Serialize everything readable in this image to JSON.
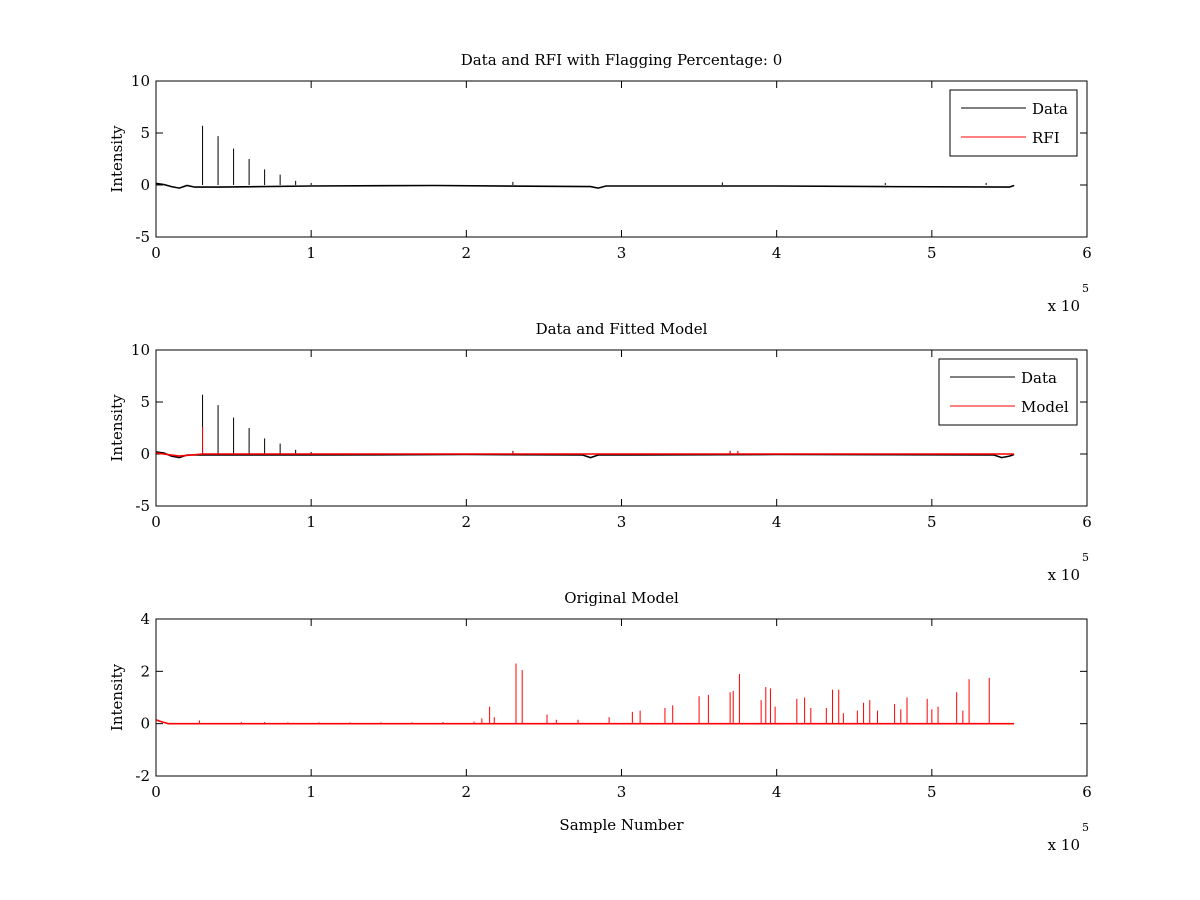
{
  "chart_data": [
    {
      "type": "line",
      "title": "Data and RFI with Flagging Percentage: 0",
      "xlabel": "",
      "ylabel": "Intensity",
      "xlim": [
        0,
        600000
      ],
      "ylim": [
        -5,
        10
      ],
      "xticks": [
        0,
        1,
        2,
        3,
        4,
        5,
        6
      ],
      "yticks": [
        -5,
        0,
        5,
        10
      ],
      "x_multiplier": {
        "base": "x 10",
        "exponent": "5"
      },
      "legend": {
        "position": "top-right",
        "entries": [
          {
            "label": "Data",
            "color": "#000000"
          },
          {
            "label": "RFI",
            "color": "#ff0000"
          }
        ]
      },
      "series": [
        {
          "name": "Data",
          "color": "#000000",
          "baseline": [
            [
              0,
              0.15
            ],
            [
              5000,
              0.05
            ],
            [
              10000,
              -0.15
            ],
            [
              15000,
              -0.3
            ],
            [
              20000,
              -0.05
            ],
            [
              25000,
              -0.2
            ],
            [
              40000,
              -0.2
            ],
            [
              100000,
              -0.1
            ],
            [
              180000,
              -0.05
            ],
            [
              280000,
              -0.15
            ],
            [
              285000,
              -0.3
            ],
            [
              290000,
              -0.1
            ],
            [
              400000,
              -0.1
            ],
            [
              470000,
              -0.15
            ],
            [
              550000,
              -0.2
            ],
            [
              553000,
              -0.05
            ]
          ],
          "spikes": [
            [
              30000,
              5.7
            ],
            [
              40000,
              4.7
            ],
            [
              50000,
              3.5
            ],
            [
              60000,
              2.5
            ],
            [
              70000,
              1.5
            ],
            [
              80000,
              1.0
            ],
            [
              90000,
              0.4
            ],
            [
              100000,
              0.2
            ],
            [
              230000,
              0.3
            ],
            [
              365000,
              0.25
            ],
            [
              470000,
              0.2
            ],
            [
              535000,
              0.2
            ]
          ]
        }
      ]
    },
    {
      "type": "line",
      "title": "Data and Fitted Model",
      "xlabel": "",
      "ylabel": "Intensity",
      "xlim": [
        0,
        600000
      ],
      "ylim": [
        -5,
        10
      ],
      "xticks": [
        0,
        1,
        2,
        3,
        4,
        5,
        6
      ],
      "yticks": [
        -5,
        0,
        5,
        10
      ],
      "x_multiplier": {
        "base": "x 10",
        "exponent": "5"
      },
      "legend": {
        "position": "top-right",
        "entries": [
          {
            "label": "Data",
            "color": "#000000"
          },
          {
            "label": "Model",
            "color": "#ff0000"
          }
        ]
      },
      "series": [
        {
          "name": "Data",
          "color": "#000000",
          "baseline": [
            [
              0,
              0.2
            ],
            [
              5000,
              0.1
            ],
            [
              10000,
              -0.2
            ],
            [
              15000,
              -0.35
            ],
            [
              20000,
              -0.1
            ],
            [
              30000,
              -0.1
            ],
            [
              100000,
              -0.1
            ],
            [
              200000,
              -0.05
            ],
            [
              275000,
              -0.1
            ],
            [
              280000,
              -0.35
            ],
            [
              285000,
              -0.1
            ],
            [
              400000,
              -0.05
            ],
            [
              540000,
              -0.1
            ],
            [
              545000,
              -0.35
            ],
            [
              550000,
              -0.2
            ],
            [
              553000,
              -0.05
            ]
          ],
          "spikes": [
            [
              30000,
              5.7
            ],
            [
              40000,
              4.7
            ],
            [
              50000,
              3.5
            ],
            [
              60000,
              2.5
            ],
            [
              70000,
              1.5
            ],
            [
              80000,
              1.0
            ],
            [
              90000,
              0.4
            ],
            [
              100000,
              0.2
            ],
            [
              230000,
              0.3
            ],
            [
              370000,
              0.3
            ],
            [
              375000,
              0.25
            ]
          ]
        },
        {
          "name": "Model",
          "color": "#ff0000",
          "baseline": [
            [
              0,
              0.1
            ],
            [
              15000,
              -0.2
            ],
            [
              30000,
              0.0
            ],
            [
              553000,
              0.0
            ]
          ],
          "spikes": [
            [
              30000,
              2.6
            ],
            [
              230000,
              0.2
            ],
            [
              370000,
              0.3
            ],
            [
              375000,
              0.3
            ]
          ]
        }
      ]
    },
    {
      "type": "line",
      "title": "Original Model",
      "xlabel": "Sample Number",
      "ylabel": "Intensity",
      "xlim": [
        0,
        600000
      ],
      "ylim": [
        -2,
        4
      ],
      "xticks": [
        0,
        1,
        2,
        3,
        4,
        5,
        6
      ],
      "yticks": [
        -2,
        0,
        2,
        4
      ],
      "x_multiplier": {
        "base": "x 10",
        "exponent": "5"
      },
      "legend": null,
      "series": [
        {
          "name": "",
          "color": "#ff0000",
          "baseline": [
            [
              0,
              0.15
            ],
            [
              2000,
              0.1
            ],
            [
              5000,
              0.05
            ],
            [
              8000,
              0.0
            ],
            [
              553000,
              0.0
            ]
          ],
          "spikes": [
            [
              28000,
              0.12
            ],
            [
              55000,
              0.06
            ],
            [
              70000,
              0.06
            ],
            [
              85000,
              0.05
            ],
            [
              105000,
              0.05
            ],
            [
              125000,
              0.05
            ],
            [
              145000,
              0.05
            ],
            [
              165000,
              0.05
            ],
            [
              185000,
              0.06
            ],
            [
              205000,
              0.08
            ],
            [
              210000,
              0.2
            ],
            [
              215000,
              0.65
            ],
            [
              218000,
              0.25
            ],
            [
              232000,
              2.3
            ],
            [
              236000,
              2.05
            ],
            [
              252000,
              0.35
            ],
            [
              258000,
              0.15
            ],
            [
              272000,
              0.15
            ],
            [
              292000,
              0.25
            ],
            [
              307000,
              0.45
            ],
            [
              312000,
              0.5
            ],
            [
              328000,
              0.6
            ],
            [
              333000,
              0.7
            ],
            [
              350000,
              1.05
            ],
            [
              356000,
              1.1
            ],
            [
              370000,
              1.2
            ],
            [
              372000,
              1.25
            ],
            [
              376000,
              1.9
            ],
            [
              390000,
              0.9
            ],
            [
              393000,
              1.4
            ],
            [
              396000,
              1.35
            ],
            [
              399000,
              0.65
            ],
            [
              413000,
              0.95
            ],
            [
              418000,
              1.0
            ],
            [
              422000,
              0.6
            ],
            [
              432000,
              0.6
            ],
            [
              436000,
              1.3
            ],
            [
              440000,
              1.3
            ],
            [
              443000,
              0.4
            ],
            [
              452000,
              0.5
            ],
            [
              456000,
              0.8
            ],
            [
              460000,
              0.9
            ],
            [
              465000,
              0.5
            ],
            [
              476000,
              0.75
            ],
            [
              480000,
              0.55
            ],
            [
              484000,
              1.0
            ],
            [
              497000,
              0.95
            ],
            [
              500000,
              0.55
            ],
            [
              504000,
              0.65
            ],
            [
              516000,
              1.2
            ],
            [
              520000,
              0.5
            ],
            [
              524000,
              1.7
            ],
            [
              537000,
              1.75
            ]
          ]
        }
      ]
    }
  ]
}
